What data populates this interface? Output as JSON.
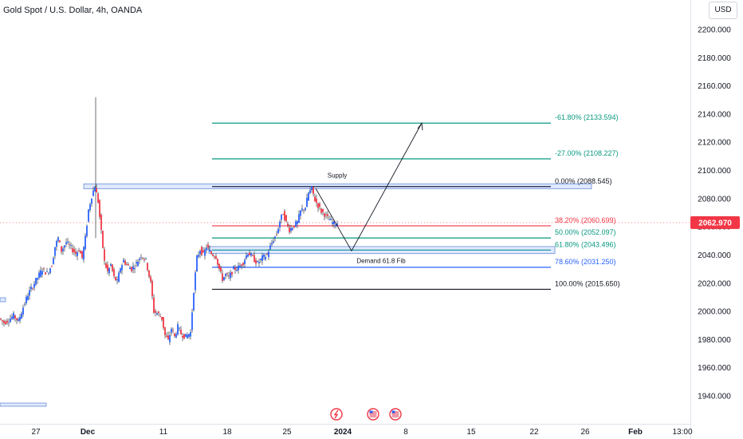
{
  "header": {
    "title": "Gold Spot / U.S. Dollar, 4h, OANDA",
    "currency": "USD"
  },
  "current_price": {
    "label": "2062.970",
    "value": 2062.97,
    "color": "#f23645"
  },
  "colors": {
    "up": "#2962ff",
    "down": "#f23645",
    "wick": "#131722"
  },
  "chart_data": {
    "type": "candlestick",
    "symbol": "Gold Spot / U.S. Dollar",
    "interval": "4h",
    "exchange": "OANDA",
    "y_axis": {
      "ylim": [
        1930,
        2210
      ],
      "ticks": [
        1940,
        1960,
        1980,
        2000,
        2020,
        2040,
        2060,
        2080,
        2100,
        2120,
        2140,
        2160,
        2180,
        2200
      ],
      "tick_labels": [
        "1940.000",
        "1960.000",
        "1980.000",
        "2000.000",
        "2020.000",
        "2040.000",
        "2060.000",
        "2080.000",
        "2100.000",
        "2120.000",
        "2140.000",
        "2160.000",
        "2180.000",
        "2200.000"
      ]
    },
    "x_axis": {
      "tick_labels": [
        "27",
        "Dec",
        "11",
        "18",
        "25",
        "2024",
        "8",
        "15",
        "22",
        "26",
        "Feb",
        "13:00"
      ],
      "bold": [
        "Dec",
        "2024",
        "Feb"
      ]
    },
    "close_path": [
      [
        0,
        1995
      ],
      [
        6,
        1992
      ],
      [
        12,
        1994
      ],
      [
        18,
        1997
      ],
      [
        24,
        1993
      ],
      [
        30,
        2003
      ],
      [
        36,
        2012
      ],
      [
        42,
        2018
      ],
      [
        48,
        2024
      ],
      [
        54,
        2030
      ],
      [
        60,
        2027
      ],
      [
        66,
        2033
      ],
      [
        70,
        2046
      ],
      [
        74,
        2052
      ],
      [
        78,
        2043
      ],
      [
        84,
        2049
      ],
      [
        90,
        2045
      ],
      [
        96,
        2041
      ],
      [
        100,
        2044
      ],
      [
        104,
        2038
      ],
      [
        108,
        2052
      ],
      [
        112,
        2072
      ],
      [
        116,
        2082
      ],
      [
        120,
        2089
      ],
      [
        124,
        2078
      ],
      [
        128,
        2056
      ],
      [
        132,
        2035
      ],
      [
        136,
        2028
      ],
      [
        140,
        2033
      ],
      [
        144,
        2024
      ],
      [
        148,
        2021
      ],
      [
        152,
        2031
      ],
      [
        156,
        2036
      ],
      [
        160,
        2033
      ],
      [
        166,
        2030
      ],
      [
        172,
        2034
      ],
      [
        178,
        2040
      ],
      [
        184,
        2036
      ],
      [
        190,
        2020
      ],
      [
        194,
        2000
      ],
      [
        200,
        1998
      ],
      [
        204,
        1995
      ],
      [
        208,
        1983
      ],
      [
        212,
        1979
      ],
      [
        216,
        1988
      ],
      [
        220,
        1982
      ],
      [
        224,
        1989
      ],
      [
        228,
        1984
      ],
      [
        234,
        1982
      ],
      [
        240,
        1985
      ],
      [
        244,
        2015
      ],
      [
        248,
        2038
      ],
      [
        252,
        2044
      ],
      [
        256,
        2040
      ],
      [
        260,
        2046
      ],
      [
        266,
        2041
      ],
      [
        272,
        2039
      ],
      [
        276,
        2030
      ],
      [
        280,
        2023
      ],
      [
        284,
        2026
      ],
      [
        288,
        2024
      ],
      [
        294,
        2030
      ],
      [
        300,
        2031
      ],
      [
        306,
        2035
      ],
      [
        312,
        2042
      ],
      [
        318,
        2038
      ],
      [
        324,
        2034
      ],
      [
        330,
        2038
      ],
      [
        336,
        2040
      ],
      [
        340,
        2046
      ],
      [
        344,
        2051
      ],
      [
        348,
        2055
      ],
      [
        352,
        2064
      ],
      [
        356,
        2070
      ],
      [
        360,
        2063
      ],
      [
        364,
        2058
      ],
      [
        368,
        2060
      ],
      [
        374,
        2063
      ],
      [
        378,
        2071
      ],
      [
        384,
        2074
      ],
      [
        388,
        2084
      ],
      [
        392,
        2087
      ],
      [
        396,
        2079
      ],
      [
        400,
        2075
      ],
      [
        404,
        2071
      ],
      [
        408,
        2069
      ],
      [
        412,
        2066
      ],
      [
        416,
        2064
      ],
      [
        420,
        2062
      ],
      [
        424,
        2063
      ]
    ],
    "big_wick": {
      "x": 120,
      "high": 2152,
      "low": 2052
    },
    "fib_levels": [
      {
        "ratio": "-61.80%",
        "label": "-61.80% (2133.594)",
        "price": 2133.594,
        "color": "#089981"
      },
      {
        "ratio": "-27.00%",
        "label": "-27.00% (2108.227)",
        "price": 2108.227,
        "color": "#089981"
      },
      {
        "ratio": "0.00%",
        "label": "0.00% (2088.545)",
        "price": 2088.545,
        "color": "#131722"
      },
      {
        "ratio": "38.20%",
        "label": "38.20% (2060.699)",
        "price": 2060.699,
        "color": "#f23645"
      },
      {
        "ratio": "50.00%",
        "label": "50.00% (2052.097)",
        "price": 2052.097,
        "color": "#089981"
      },
      {
        "ratio": "61.80%",
        "label": "61.80% (2043.496)",
        "price": 2043.496,
        "color": "#089981"
      },
      {
        "ratio": "78.60%",
        "label": "78.60% (2031.250)",
        "price": 2031.25,
        "color": "#2962ff"
      },
      {
        "ratio": "100.00%",
        "label": "100.00% (2015.650)",
        "price": 2015.65,
        "color": "#131722"
      }
    ],
    "zones": [
      {
        "label": "Supply",
        "top": 2090.5,
        "bottom": 2087.0
      },
      {
        "label": "Demand 61.8 Fib",
        "top": 2046.0,
        "bottom": 2041.0
      }
    ],
    "projection": [
      [
        2060.7
      ],
      [
        2043.0
      ],
      [
        2133.6
      ]
    ]
  }
}
